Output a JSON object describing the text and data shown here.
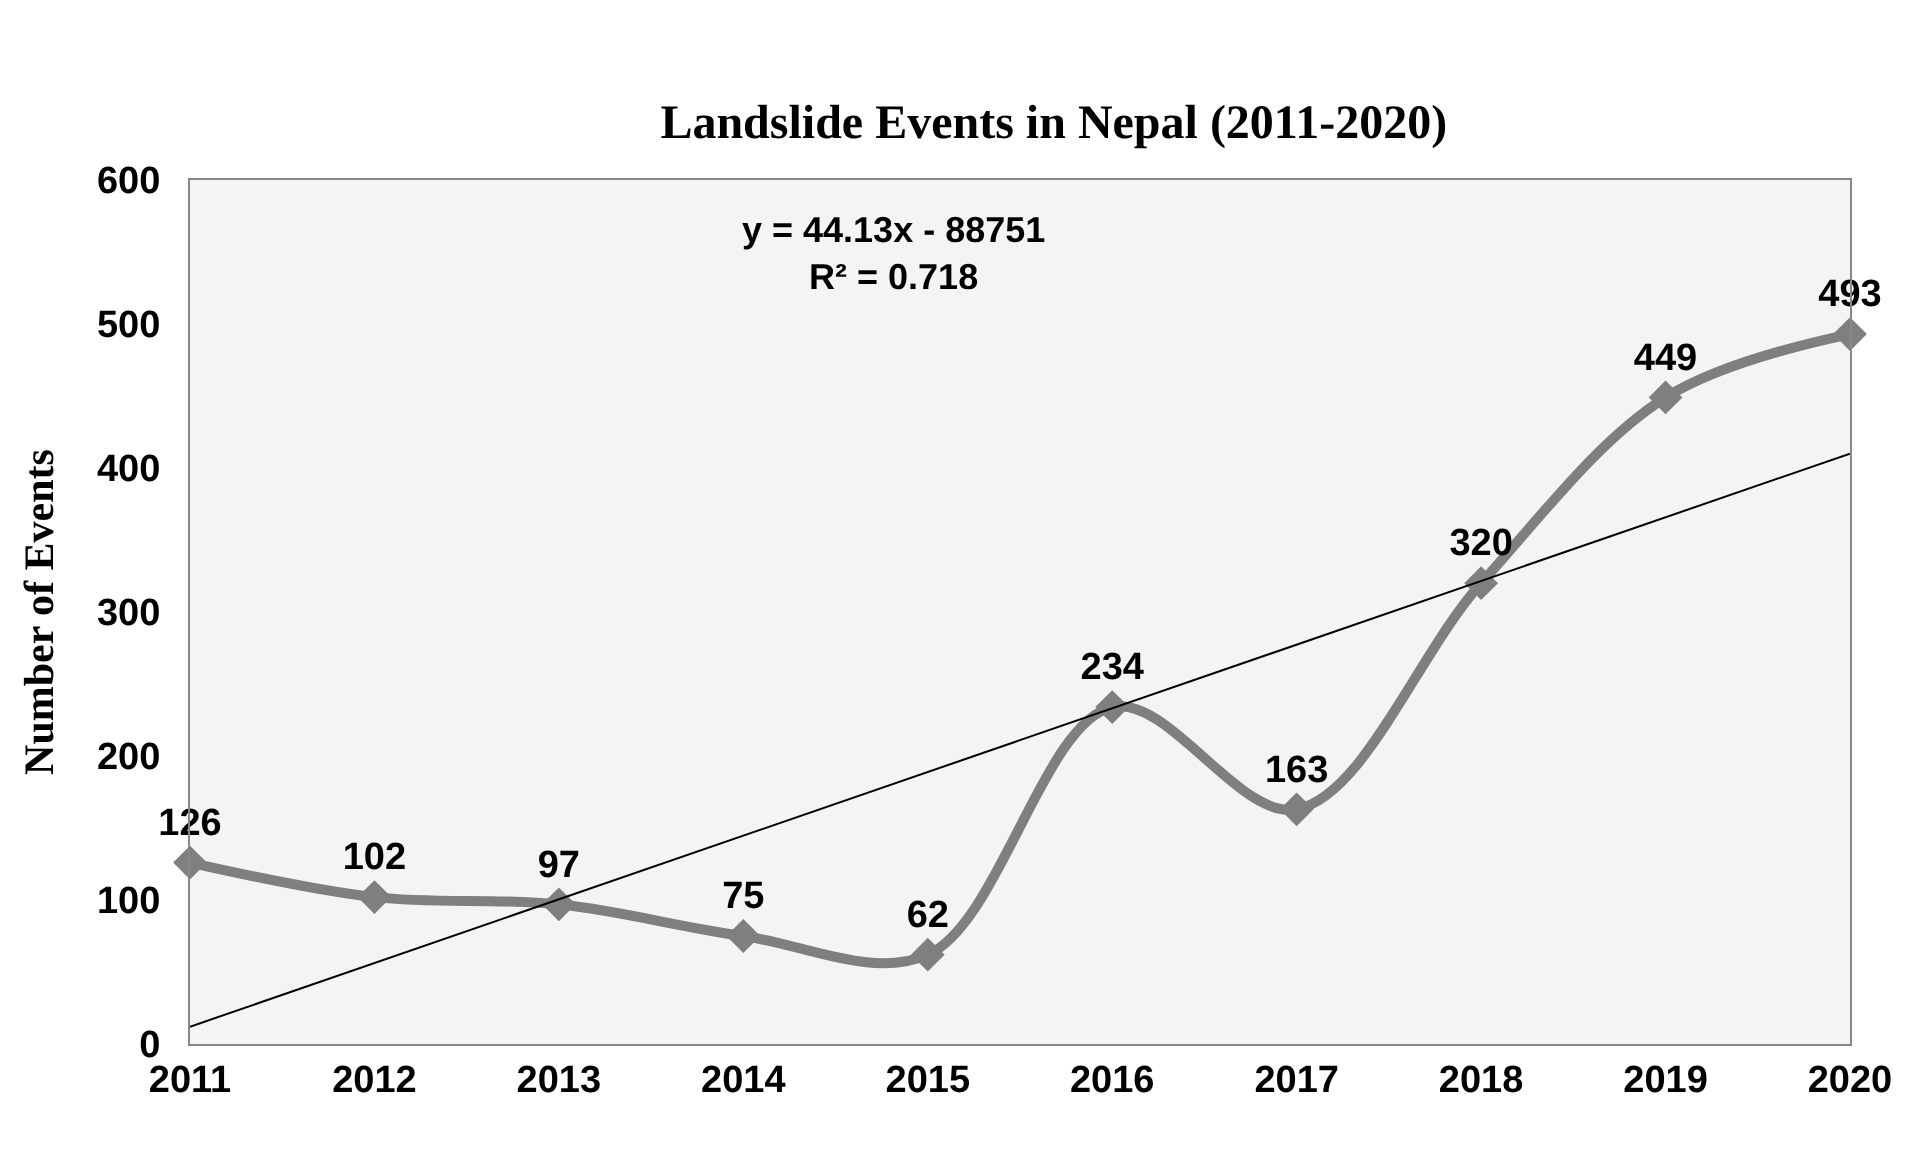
{
  "chart_data": {
    "type": "line",
    "title": "Landslide Events in Nepal (2011-2020)",
    "ylabel": "Number of Events",
    "x": [
      2011,
      2012,
      2013,
      2014,
      2015,
      2016,
      2017,
      2018,
      2019,
      2020
    ],
    "series": [
      {
        "color": "#7f7f7f",
        "values": [
          126,
          102,
          97,
          75,
          62,
          234,
          163,
          320,
          449,
          493
        ],
        "marker": "diamond",
        "data_labels": true
      },
      {
        "type": "line",
        "color": "#000000",
        "x": [
          2011,
          2020
        ],
        "values": [
          12,
          410
        ],
        "marker": "none"
      }
    ],
    "annotations": [
      "y = 44.13x - 88751\nR² = 0.718"
    ],
    "xlim": [
      2011,
      2020
    ],
    "xticks": [
      2011,
      2012,
      2013,
      2014,
      2015,
      2016,
      2017,
      2018,
      2019,
      2020
    ],
    "ylim": [
      0,
      600
    ],
    "yticks": [
      0,
      100,
      200,
      300,
      400,
      500,
      600
    ],
    "grid": false
  }
}
